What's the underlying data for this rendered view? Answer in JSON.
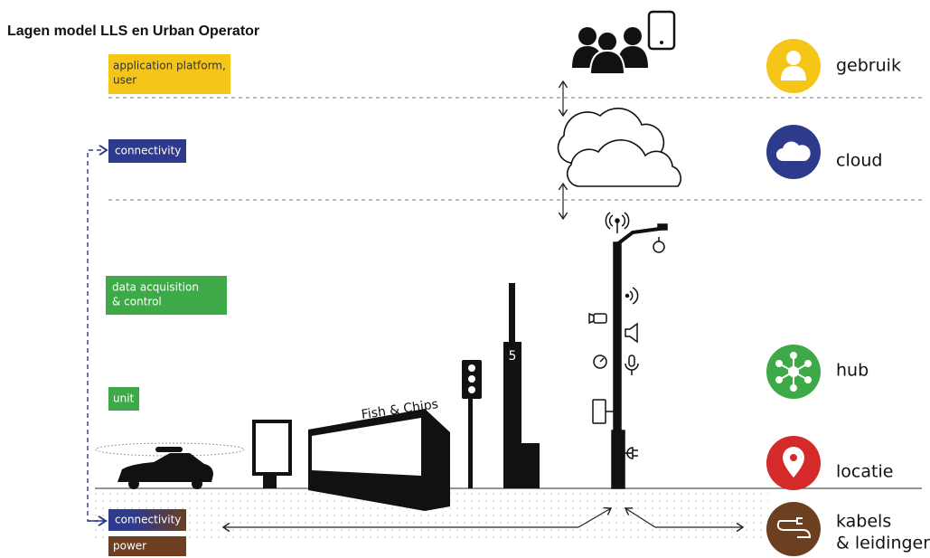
{
  "title": "Lagen model LLS en Urban Operator",
  "left_labels": [
    {
      "lines": [
        "application platform,",
        "user"
      ]
    },
    {
      "lines": [
        "connectivity"
      ]
    },
    {
      "lines": [
        "data acquisition",
        "& control"
      ]
    },
    {
      "lines": [
        "unit"
      ]
    },
    {
      "lines": [
        "connectivity"
      ]
    },
    {
      "lines": [
        "power"
      ]
    }
  ],
  "layers": [
    {
      "lines": [
        "gebruik"
      ]
    },
    {
      "lines": [
        "cloud"
      ]
    },
    {
      "lines": [
        "hub"
      ]
    },
    {
      "lines": [
        "locatie"
      ]
    },
    {
      "lines": [
        "kabels",
        "& leidingen"
      ]
    }
  ],
  "scene": {
    "kiosk_sign": "Fish & Chips",
    "tower_number": "5"
  }
}
